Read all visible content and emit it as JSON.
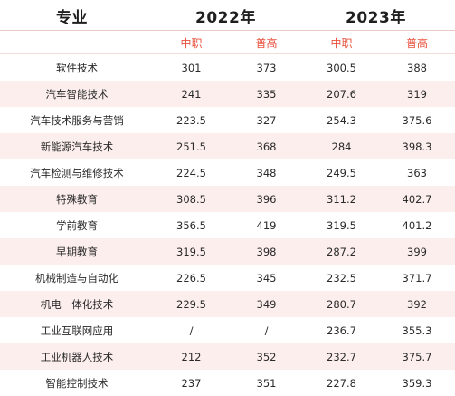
{
  "header": {
    "major": "专业",
    "year_2022": "2022年",
    "year_2023": "2023年"
  },
  "subheader": [
    "中职",
    "普高",
    "中职",
    "普高"
  ],
  "rows": [
    {
      "major": "软件技术",
      "v2022_zz": "301",
      "v2022_pg": "373",
      "v2023_zz": "300.5",
      "v2023_pg": "388"
    },
    {
      "major": "汽车智能技术",
      "v2022_zz": "241",
      "v2022_pg": "335",
      "v2023_zz": "207.6",
      "v2023_pg": "319"
    },
    {
      "major": "汽车技术服务与营销",
      "v2022_zz": "223.5",
      "v2022_pg": "327",
      "v2023_zz": "254.3",
      "v2023_pg": "375.6"
    },
    {
      "major": "新能源汽车技术",
      "v2022_zz": "251.5",
      "v2022_pg": "368",
      "v2023_zz": "284",
      "v2023_pg": "398.3"
    },
    {
      "major": "汽车检测与维修技术",
      "v2022_zz": "224.5",
      "v2022_pg": "348",
      "v2023_zz": "249.5",
      "v2023_pg": "363"
    },
    {
      "major": "特殊教育",
      "v2022_zz": "308.5",
      "v2022_pg": "396",
      "v2023_zz": "311.2",
      "v2023_pg": "402.7"
    },
    {
      "major": "学前教育",
      "v2022_zz": "356.5",
      "v2022_pg": "419",
      "v2023_zz": "319.5",
      "v2023_pg": "401.2"
    },
    {
      "major": "早期教育",
      "v2022_zz": "319.5",
      "v2022_pg": "398",
      "v2023_zz": "287.2",
      "v2023_pg": "399"
    },
    {
      "major": "机械制造与自动化",
      "v2022_zz": "226.5",
      "v2022_pg": "345",
      "v2023_zz": "232.5",
      "v2023_pg": "371.7"
    },
    {
      "major": "机电一体化技术",
      "v2022_zz": "229.5",
      "v2022_pg": "349",
      "v2023_zz": "280.7",
      "v2023_pg": "392"
    },
    {
      "major": "工业互联网应用",
      "v2022_zz": "/",
      "v2022_pg": "/",
      "v2023_zz": "236.7",
      "v2023_pg": "355.3"
    },
    {
      "major": "工业机器人技术",
      "v2022_zz": "212",
      "v2022_pg": "352",
      "v2023_zz": "232.7",
      "v2023_pg": "375.7"
    },
    {
      "major": "智能控制技术",
      "v2022_zz": "237",
      "v2022_pg": "351",
      "v2023_zz": "227.8",
      "v2023_pg": "359.3"
    }
  ]
}
